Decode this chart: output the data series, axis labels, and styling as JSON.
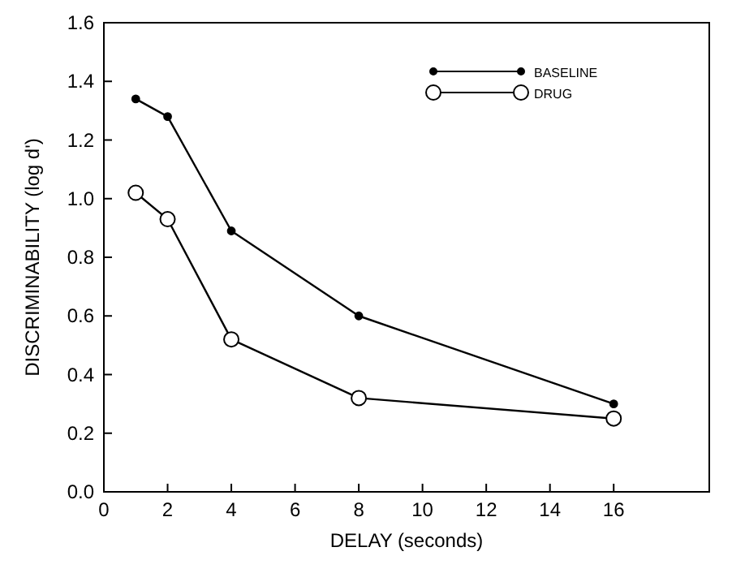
{
  "chart_data": {
    "type": "line",
    "xlabel": "DELAY (seconds)",
    "ylabel": "DISCRIMINABILITY (log d')",
    "xlim": [
      0,
      19
    ],
    "xticks": [
      0,
      2,
      4,
      6,
      8,
      10,
      12,
      14,
      16
    ],
    "ylim": [
      0,
      1.6
    ],
    "yticks": [
      {
        "value": 0,
        "label": "0.0"
      },
      {
        "value": 0.2,
        "label": "0.2"
      },
      {
        "value": 0.4,
        "label": "0.4"
      },
      {
        "value": 0.6,
        "label": "0.6"
      },
      {
        "value": 0.8,
        "label": "0.8"
      },
      {
        "value": 1,
        "label": "1.0"
      },
      {
        "value": 1.2,
        "label": "1.2"
      },
      {
        "value": 1.4,
        "label": "1.4"
      },
      {
        "value": 1.6,
        "label": "1.6"
      }
    ],
    "grid": false,
    "legend": "top right",
    "line_style": "solid",
    "series": [
      {
        "name": "BASELINE",
        "color": "#000000",
        "marker": "circle",
        "x": [
          1,
          2,
          4,
          8,
          16
        ],
        "values": [
          1.34,
          1.28,
          0.89,
          0.6,
          0.3
        ]
      },
      {
        "name": "DRUG",
        "color": "#000000",
        "marker": "circle",
        "x": [
          1,
          2,
          4,
          8,
          16
        ],
        "values": [
          1.02,
          0.93,
          0.52,
          0.32,
          0.25
        ]
      }
    ]
  }
}
